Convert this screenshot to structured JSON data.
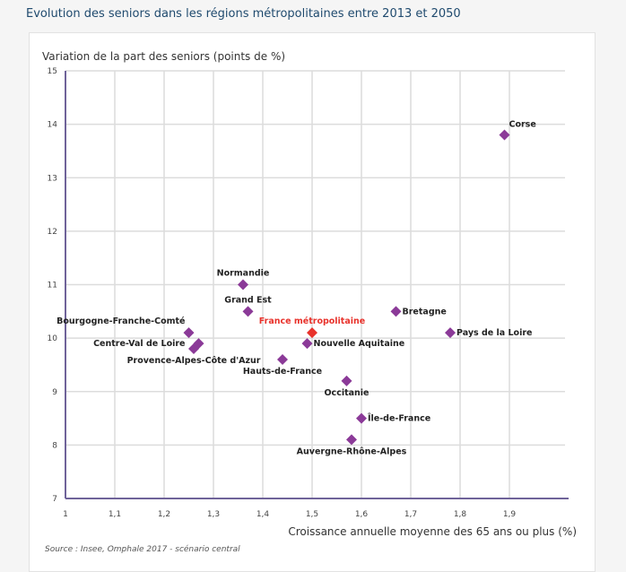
{
  "title": "Evolution des seniors dans les régions métropolitaines entre 2013 et 2050",
  "source": "Source : Insee, Omphale 2017 - scénario central",
  "chart_data": {
    "type": "scatter",
    "ylabel": "Variation de la part des seniors (points de %)",
    "xlabel": "Croissance annuelle moyenne des 65 ans ou plus (%)",
    "xlim": [
      1,
      2.02
    ],
    "ylim": [
      7,
      15
    ],
    "xticks": [
      "1",
      "1,1",
      "1,2",
      "1,3",
      "1,4",
      "1,5",
      "1,6",
      "1,7",
      "1,8",
      "1,9"
    ],
    "yticks": [
      "7",
      "8",
      "9",
      "10",
      "11",
      "12",
      "13",
      "14",
      "15"
    ],
    "grid": true,
    "colors": {
      "region": "#8b3a98",
      "france": "#e8322b",
      "axis": "#6f6399",
      "grid": "#dcdcdc"
    },
    "points": [
      {
        "label": "Corse",
        "x": 1.89,
        "y": 13.8,
        "label_position": "top-right"
      },
      {
        "label": "Normandie",
        "x": 1.36,
        "y": 11.0,
        "label_position": "top"
      },
      {
        "label": "Grand Est",
        "x": 1.37,
        "y": 10.5,
        "label_position": "top"
      },
      {
        "label": "Bourgogne-Franche-Comté",
        "x": 1.25,
        "y": 10.1,
        "label_position": "top-left"
      },
      {
        "label": "Centre-Val de Loire",
        "x": 1.27,
        "y": 9.9,
        "label_position": "left"
      },
      {
        "label": "Provence-Alpes-Côte d'Azur",
        "x": 1.26,
        "y": 9.8,
        "label_position": "bottom"
      },
      {
        "label": "France métropolitaine",
        "x": 1.5,
        "y": 10.1,
        "label_position": "top",
        "highlight": true
      },
      {
        "label": "Nouvelle Aquitaine",
        "x": 1.49,
        "y": 9.9,
        "label_position": "right"
      },
      {
        "label": "Hauts-de-France",
        "x": 1.44,
        "y": 9.6,
        "label_position": "bottom"
      },
      {
        "label": "Occitanie",
        "x": 1.57,
        "y": 9.2,
        "label_position": "bottom"
      },
      {
        "label": "Île-de-France",
        "x": 1.6,
        "y": 8.5,
        "label_position": "right"
      },
      {
        "label": "Auvergne-Rhône-Alpes",
        "x": 1.58,
        "y": 8.1,
        "label_position": "bottom"
      },
      {
        "label": "Bretagne",
        "x": 1.67,
        "y": 10.5,
        "label_position": "right"
      },
      {
        "label": "Pays de la Loire",
        "x": 1.78,
        "y": 10.1,
        "label_position": "right"
      }
    ]
  }
}
